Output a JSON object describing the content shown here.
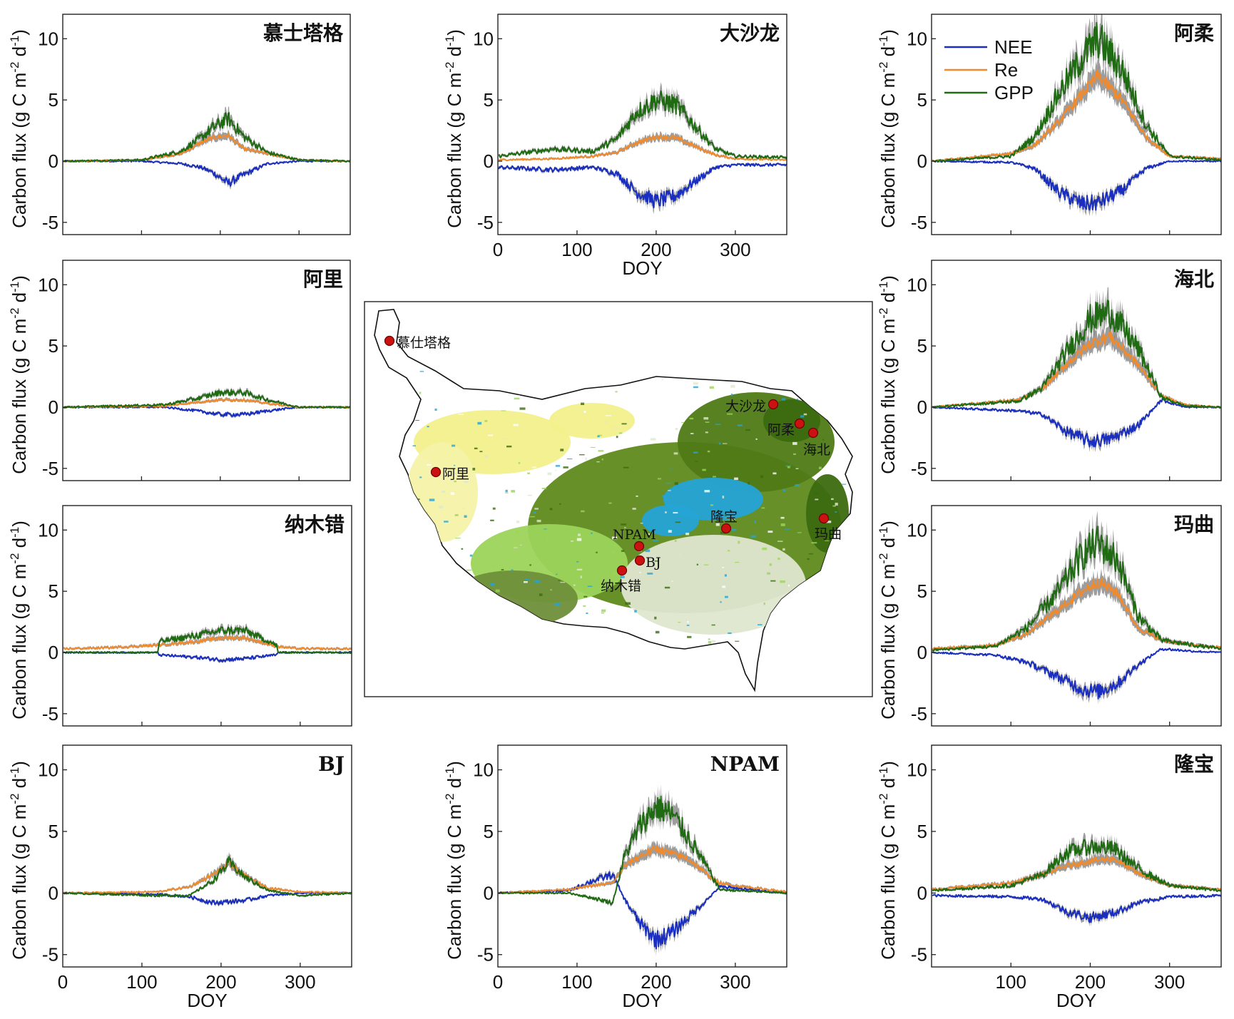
{
  "legend": {
    "items": [
      {
        "label": "NEE",
        "color": "#1a2fbf"
      },
      {
        "label": "Re",
        "color": "#f08a2c"
      },
      {
        "label": "GPP",
        "color": "#1e6b12"
      }
    ]
  },
  "colors": {
    "nee": "#1a2fbf",
    "re": "#f08a2c",
    "gpp": "#1e6b12",
    "band": "#8c8c8c",
    "site_marker": "#cc1111"
  },
  "map": {
    "sites": [
      {
        "label": "慕仕塔格"
      },
      {
        "label": "阿里"
      },
      {
        "label": "大沙龙"
      },
      {
        "label": "阿柔"
      },
      {
        "label": "海北"
      },
      {
        "label": "隆宝"
      },
      {
        "label": "玛曲"
      },
      {
        "label": "NPAM"
      },
      {
        "label": "BJ"
      },
      {
        "label": "纳木错"
      }
    ]
  },
  "chart_data": [
    {
      "type": "line",
      "title": "慕士塔格",
      "ylabel": "Carbon flux (g C m-2 d-1)",
      "xlabel": "",
      "xlim": [
        0,
        365
      ],
      "ylim": [
        -6,
        12
      ],
      "yticks": [
        10,
        5,
        0,
        -5
      ],
      "xticks": [],
      "series": [
        {
          "name": "NEE",
          "x": [
            0,
            100,
            150,
            175,
            190,
            210,
            230,
            260,
            300,
            365
          ],
          "values": [
            0,
            0,
            -0.2,
            -0.5,
            -0.9,
            -1.8,
            -1.1,
            -0.2,
            0,
            0
          ]
        },
        {
          "name": "Re",
          "x": [
            0,
            100,
            150,
            175,
            190,
            210,
            230,
            260,
            300,
            365
          ],
          "values": [
            0,
            0.1,
            0.6,
            1.5,
            1.9,
            2.1,
            1.0,
            0.6,
            0.1,
            0
          ]
        },
        {
          "name": "GPP",
          "x": [
            0,
            100,
            150,
            175,
            190,
            210,
            230,
            260,
            300,
            365
          ],
          "values": [
            0,
            0.1,
            0.8,
            1.9,
            2.7,
            3.5,
            2.0,
            0.7,
            0.1,
            0
          ]
        }
      ]
    },
    {
      "type": "line",
      "title": "大沙龙",
      "ylabel": "Carbon flux (g C m-2 d-1)",
      "xlabel": "DOY",
      "xlim": [
        0,
        365
      ],
      "ylim": [
        -6,
        12
      ],
      "yticks": [
        10,
        5,
        0,
        -5
      ],
      "xticks": [
        0,
        100,
        200,
        300
      ],
      "series": [
        {
          "name": "NEE",
          "x": [
            0,
            70,
            120,
            150,
            175,
            200,
            225,
            250,
            275,
            300,
            365
          ],
          "values": [
            -0.5,
            -0.7,
            -0.5,
            -1.0,
            -2.5,
            -3.3,
            -2.8,
            -1.6,
            -0.5,
            -0.3,
            -0.3
          ]
        },
        {
          "name": "Re",
          "x": [
            0,
            70,
            120,
            150,
            175,
            200,
            225,
            250,
            275,
            300,
            365
          ],
          "values": [
            0.1,
            0.2,
            0.4,
            0.7,
            1.5,
            2.0,
            1.9,
            1.2,
            0.5,
            0.2,
            0.1
          ]
        },
        {
          "name": "GPP",
          "x": [
            0,
            70,
            120,
            150,
            175,
            200,
            225,
            250,
            275,
            300,
            365
          ],
          "values": [
            0.4,
            1.0,
            0.8,
            1.8,
            4.0,
            5.0,
            4.6,
            2.8,
            1.0,
            0.4,
            0.3
          ]
        }
      ]
    },
    {
      "type": "line",
      "title": "阿柔",
      "ylabel": "Carbon flux (g C m-2 d-1)",
      "xlabel": "",
      "xlim": [
        0,
        365
      ],
      "ylim": [
        -6,
        12
      ],
      "yticks": [
        10,
        5,
        0,
        -5
      ],
      "xticks": [],
      "series": [
        {
          "name": "NEE",
          "x": [
            0,
            100,
            130,
            160,
            190,
            210,
            240,
            270,
            300,
            365
          ],
          "values": [
            0,
            -0.1,
            -0.6,
            -2.5,
            -3.5,
            -3.4,
            -2.4,
            -0.6,
            0,
            0
          ]
        },
        {
          "name": "Re",
          "x": [
            0,
            100,
            130,
            160,
            190,
            210,
            240,
            270,
            300,
            365
          ],
          "values": [
            0,
            0.6,
            1.3,
            3.2,
            5.5,
            7.0,
            5.0,
            2.0,
            0.4,
            0.2
          ]
        },
        {
          "name": "GPP",
          "x": [
            0,
            100,
            130,
            160,
            190,
            210,
            240,
            270,
            300,
            365
          ],
          "values": [
            0,
            0.4,
            2.0,
            5.5,
            8.5,
            10.0,
            7.5,
            3.0,
            0.4,
            0.1
          ]
        }
      ]
    },
    {
      "type": "line",
      "title": "阿里",
      "ylabel": "Carbon flux (g C m-2 d-1)",
      "xlabel": "",
      "xlim": [
        0,
        365
      ],
      "ylim": [
        -6,
        12
      ],
      "yticks": [
        10,
        5,
        0,
        -5
      ],
      "xticks": [],
      "series": [
        {
          "name": "NEE",
          "x": [
            0,
            130,
            170,
            200,
            230,
            260,
            300,
            365
          ],
          "values": [
            0,
            0,
            -0.3,
            -0.6,
            -0.6,
            -0.3,
            0,
            0
          ]
        },
        {
          "name": "Re",
          "x": [
            0,
            130,
            170,
            200,
            230,
            260,
            300,
            365
          ],
          "values": [
            0,
            0.1,
            0.4,
            0.6,
            0.6,
            0.3,
            0,
            0
          ]
        },
        {
          "name": "GPP",
          "x": [
            0,
            130,
            170,
            200,
            230,
            260,
            300,
            365
          ],
          "values": [
            0,
            0.2,
            0.7,
            1.2,
            1.2,
            0.6,
            0,
            0
          ]
        }
      ]
    },
    {
      "type": "line",
      "title": "海北",
      "ylabel": "Carbon flux (g C m-2 d-1)",
      "xlabel": "",
      "xlim": [
        0,
        365
      ],
      "ylim": [
        -6,
        12
      ],
      "yticks": [
        10,
        5,
        0,
        -5
      ],
      "xticks": [],
      "series": [
        {
          "name": "NEE",
          "x": [
            0,
            110,
            140,
            170,
            200,
            225,
            260,
            290,
            320,
            365
          ],
          "values": [
            0,
            -0.3,
            -0.6,
            -2.0,
            -2.8,
            -2.6,
            -1.5,
            0.6,
            0,
            0
          ]
        },
        {
          "name": "Re",
          "x": [
            0,
            110,
            140,
            170,
            200,
            225,
            260,
            290,
            320,
            365
          ],
          "values": [
            0,
            0.6,
            1.5,
            3.5,
            5.2,
            5.8,
            3.5,
            0.9,
            0.2,
            0
          ]
        },
        {
          "name": "GPP",
          "x": [
            0,
            110,
            140,
            170,
            200,
            225,
            260,
            290,
            320,
            365
          ],
          "values": [
            0,
            0.5,
            1.6,
            4.5,
            7.2,
            7.8,
            4.8,
            0.8,
            0.1,
            0
          ]
        }
      ]
    },
    {
      "type": "line",
      "title": "纳木错",
      "ylabel": "Carbon flux (g C m-2 d-1)",
      "xlabel": "",
      "xlim": [
        0,
        365
      ],
      "ylim": [
        -6,
        12
      ],
      "yticks": [
        10,
        5,
        0,
        -5
      ],
      "xticks": [],
      "series": [
        {
          "name": "NEE",
          "x": [
            0,
            120,
            122,
            170,
            200,
            230,
            270,
            272,
            365
          ],
          "values": [
            0,
            0,
            -0.2,
            -0.4,
            -0.6,
            -0.5,
            -0.2,
            0,
            0
          ]
        },
        {
          "name": "Re",
          "x": [
            0,
            60,
            120,
            170,
            200,
            230,
            270,
            300,
            365
          ],
          "values": [
            0.3,
            0.4,
            0.6,
            0.9,
            1.2,
            1.2,
            0.5,
            0.3,
            0.3
          ]
        },
        {
          "name": "GPP",
          "x": [
            0,
            120,
            122,
            170,
            200,
            230,
            270,
            272,
            365
          ],
          "values": [
            0,
            0,
            0.9,
            1.4,
            1.8,
            1.8,
            0.6,
            0,
            0
          ]
        }
      ]
    },
    {
      "type": "line",
      "title": "玛曲",
      "ylabel": "Carbon flux (g C m-2 d-1)",
      "xlabel": "",
      "xlim": [
        0,
        365
      ],
      "ylim": [
        -6,
        12
      ],
      "yticks": [
        10,
        5,
        0,
        -5
      ],
      "xticks": [],
      "series": [
        {
          "name": "NEE",
          "x": [
            0,
            80,
            120,
            160,
            190,
            210,
            235,
            260,
            290,
            330,
            365
          ],
          "values": [
            0,
            -0.2,
            -0.8,
            -2.0,
            -3.0,
            -3.2,
            -2.5,
            -1.0,
            0.3,
            0.1,
            0
          ]
        },
        {
          "name": "Re",
          "x": [
            0,
            80,
            120,
            160,
            190,
            210,
            235,
            260,
            290,
            330,
            365
          ],
          "values": [
            0.3,
            0.6,
            1.5,
            3.5,
            5.0,
            5.8,
            4.8,
            2.0,
            1.0,
            0.6,
            0.4
          ]
        },
        {
          "name": "GPP",
          "x": [
            0,
            80,
            120,
            160,
            190,
            210,
            235,
            260,
            290,
            330,
            365
          ],
          "values": [
            0.2,
            0.5,
            2.0,
            5.0,
            8.0,
            9.0,
            7.5,
            3.0,
            1.0,
            0.6,
            0.3
          ]
        }
      ]
    },
    {
      "type": "line",
      "title": "BJ",
      "ylabel": "Carbon flux (g C m-2 d-1)",
      "xlabel": "DOY",
      "xlim": [
        0,
        365
      ],
      "ylim": [
        -6,
        12
      ],
      "yticks": [
        10,
        5,
        0,
        -5
      ],
      "xticks": [
        0,
        100,
        200,
        300
      ],
      "series": [
        {
          "name": "NEE",
          "x": [
            0,
            120,
            160,
            190,
            210,
            230,
            260,
            300,
            365
          ],
          "values": [
            0,
            -0.1,
            -0.3,
            -0.8,
            -0.7,
            -0.6,
            -0.2,
            0,
            0
          ]
        },
        {
          "name": "Re",
          "x": [
            0,
            120,
            160,
            190,
            210,
            230,
            260,
            300,
            365
          ],
          "values": [
            0,
            0.1,
            0.5,
            1.5,
            2.4,
            1.4,
            0.4,
            0.1,
            0
          ]
        },
        {
          "name": "GPP",
          "x": [
            0,
            120,
            160,
            190,
            210,
            230,
            260,
            300,
            365
          ],
          "values": [
            0,
            -0.2,
            -0.2,
            1.0,
            2.5,
            1.3,
            0.2,
            -0.2,
            0
          ]
        }
      ]
    },
    {
      "type": "line",
      "title": "NPAM",
      "ylabel": "Carbon flux (g C m-2 d-1)",
      "xlabel": "DOY",
      "xlim": [
        0,
        365
      ],
      "ylim": [
        -6,
        12
      ],
      "yticks": [
        10,
        5,
        0,
        -5
      ],
      "xticks": [
        0,
        100,
        200,
        300
      ],
      "series": [
        {
          "name": "NEE",
          "x": [
            0,
            90,
            120,
            145,
            160,
            180,
            200,
            220,
            240,
            265,
            280,
            300,
            365
          ],
          "values": [
            0,
            0.2,
            1.0,
            1.5,
            -0.5,
            -2.5,
            -3.8,
            -3.2,
            -2.0,
            -0.5,
            0.5,
            0.4,
            0
          ]
        },
        {
          "name": "Re",
          "x": [
            0,
            90,
            120,
            145,
            160,
            180,
            200,
            220,
            240,
            265,
            280,
            300,
            365
          ],
          "values": [
            0,
            0.3,
            0.6,
            0.8,
            2.2,
            3.0,
            3.6,
            3.2,
            2.8,
            1.5,
            0.8,
            0.6,
            0.1
          ]
        },
        {
          "name": "GPP",
          "x": [
            0,
            90,
            120,
            145,
            160,
            180,
            200,
            220,
            240,
            265,
            280,
            300,
            365
          ],
          "values": [
            0,
            0,
            -0.4,
            -0.8,
            3.0,
            5.5,
            7.0,
            6.4,
            4.6,
            2.0,
            0.3,
            0.2,
            0
          ]
        }
      ]
    },
    {
      "type": "line",
      "title": "隆宝",
      "ylabel": "Carbon flux (g C m-2 d-1)",
      "xlabel": "DOY",
      "xlim": [
        0,
        365
      ],
      "ylim": [
        -6,
        12
      ],
      "yticks": [
        10,
        5,
        0,
        -5
      ],
      "xticks": [
        100,
        200,
        300
      ],
      "series": [
        {
          "name": "NEE",
          "x": [
            0,
            100,
            140,
            170,
            200,
            230,
            260,
            300,
            365
          ],
          "values": [
            -0.2,
            -0.3,
            -0.5,
            -1.5,
            -2.0,
            -1.6,
            -0.8,
            -0.3,
            -0.2
          ]
        },
        {
          "name": "Re",
          "x": [
            0,
            100,
            140,
            170,
            200,
            230,
            260,
            300,
            365
          ],
          "values": [
            0.3,
            0.8,
            1.5,
            2.2,
            2.6,
            2.8,
            1.6,
            0.6,
            0.3
          ]
        },
        {
          "name": "GPP",
          "x": [
            0,
            100,
            140,
            170,
            200,
            230,
            260,
            300,
            365
          ],
          "values": [
            0.2,
            0.6,
            1.5,
            3.3,
            3.8,
            3.6,
            2.0,
            0.6,
            0.2
          ]
        }
      ]
    }
  ]
}
